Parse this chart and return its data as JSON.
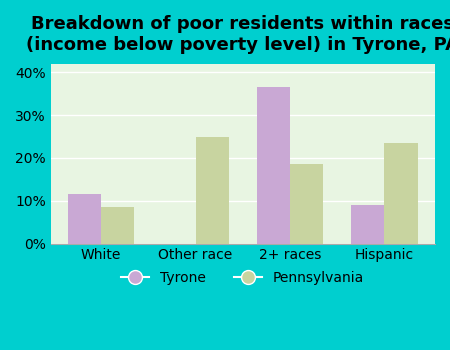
{
  "title": "Breakdown of poor residents within races\n(income below poverty level) in Tyrone, PA",
  "categories": [
    "White",
    "Other race",
    "2+ races",
    "Hispanic"
  ],
  "tyrone_values": [
    11.5,
    0,
    36.5,
    9.0
  ],
  "pennsylvania_values": [
    8.5,
    25.0,
    18.5,
    23.5
  ],
  "tyrone_color": "#c9a8d4",
  "pennsylvania_color": "#c8d4a0",
  "outer_bg_color": "#00cfcf",
  "plot_bg_color": "#e8f5e2",
  "yticks": [
    0,
    10,
    20,
    30,
    40
  ],
  "ylim": [
    0,
    42
  ],
  "bar_width": 0.35,
  "title_fontsize": 13,
  "tick_fontsize": 10,
  "legend_fontsize": 10
}
